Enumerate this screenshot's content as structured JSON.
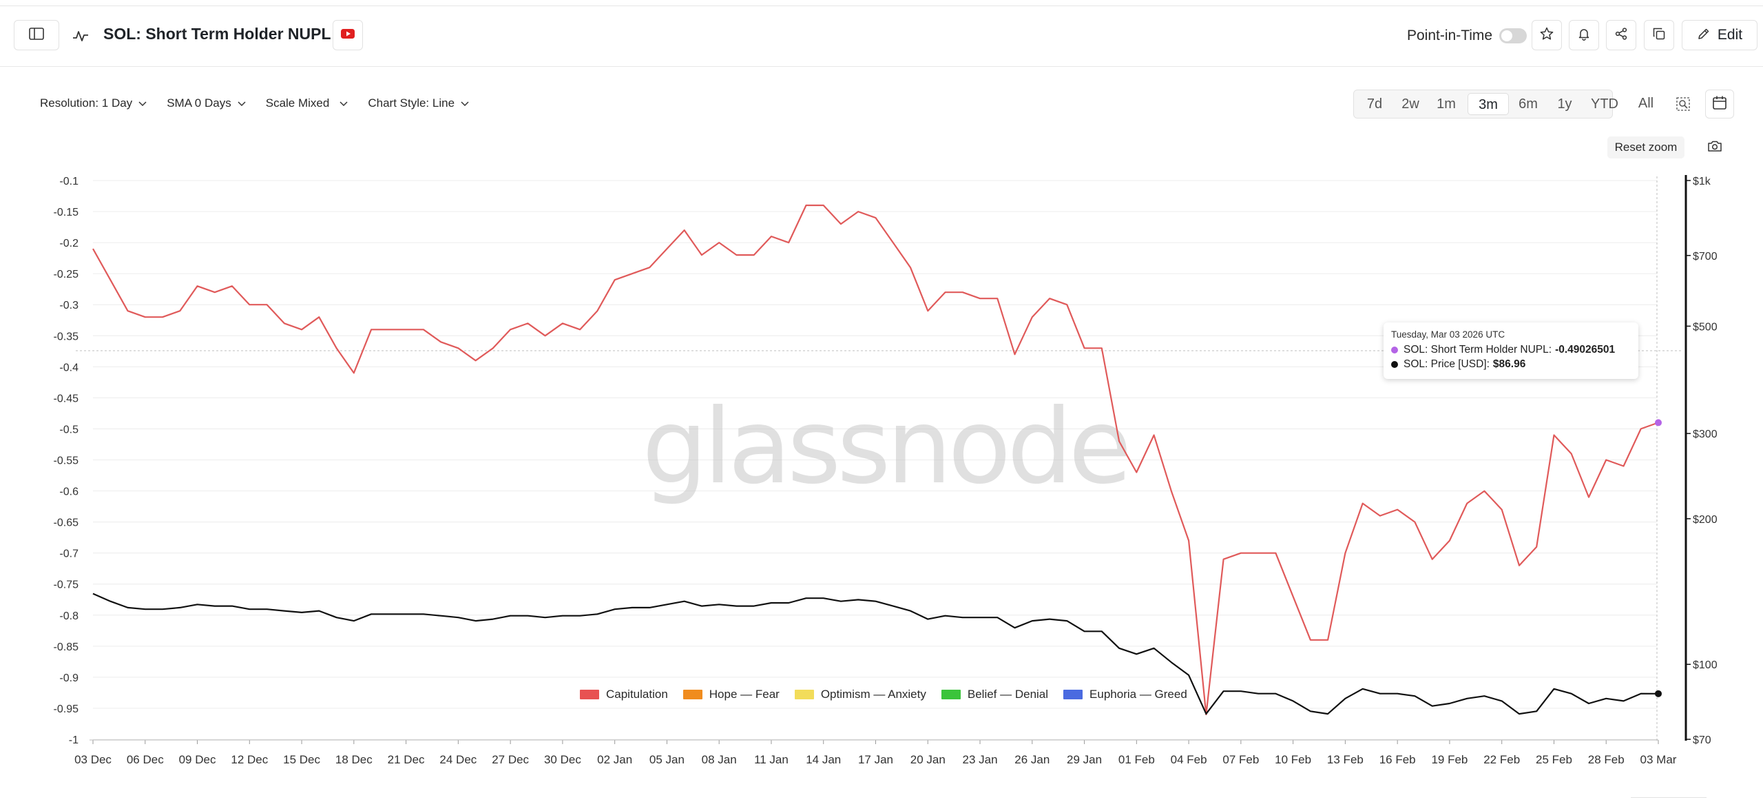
{
  "header": {
    "title": "SOL: Short Term Holder NUPL",
    "point_in_time_label": "Point-in-Time",
    "edit_label": "Edit"
  },
  "controls": {
    "resolution": "Resolution: 1 Day",
    "sma": "SMA 0 Days",
    "scale": "Scale Mixed",
    "chart_style": "Chart Style: Line"
  },
  "ranges": [
    {
      "label": "7d",
      "active": false
    },
    {
      "label": "2w",
      "active": false
    },
    {
      "label": "1m",
      "active": false
    },
    {
      "label": "3m",
      "active": true
    },
    {
      "label": "6m",
      "active": false
    },
    {
      "label": "1y",
      "active": false
    },
    {
      "label": "YTD",
      "active": false
    },
    {
      "label": "All",
      "active": false
    }
  ],
  "reset_zoom_label": "Reset zoom",
  "watermark": "glassnode",
  "tooltip": {
    "date": "Tuesday, Mar 03 2026 UTC",
    "series1_label": "SOL: Short Term Holder NUPL:",
    "series1_value": "-0.49026501",
    "series2_label": "SOL: Price [USD]:",
    "series2_value": "$86.96"
  },
  "legend": [
    {
      "label": "Capitulation",
      "color": "#e85252"
    },
    {
      "label": "Hope — Fear",
      "color": "#f08c1e"
    },
    {
      "label": "Optimism — Anxiety",
      "color": "#f2dc5a"
    },
    {
      "label": "Belief — Denial",
      "color": "#3bc43b"
    },
    {
      "label": "Euphoria — Greed",
      "color": "#4a6ae0"
    }
  ],
  "colors": {
    "nupl_line": "#e05a5a",
    "price_line": "#111111",
    "marker": "#b464e6"
  },
  "chart_data": {
    "type": "line",
    "title": "SOL: Short Term Holder NUPL",
    "x_tick_labels": [
      "03 Dec",
      "06 Dec",
      "09 Dec",
      "12 Dec",
      "15 Dec",
      "18 Dec",
      "21 Dec",
      "24 Dec",
      "27 Dec",
      "30 Dec",
      "02 Jan",
      "05 Jan",
      "08 Jan",
      "11 Jan",
      "14 Jan",
      "17 Jan",
      "20 Jan",
      "23 Jan",
      "26 Jan",
      "29 Jan",
      "01 Feb",
      "04 Feb",
      "07 Feb",
      "10 Feb",
      "13 Feb",
      "16 Feb",
      "19 Feb",
      "22 Feb",
      "25 Feb",
      "28 Feb",
      "03 Mar"
    ],
    "x_start": "2025-12-03",
    "x_end": "2026-03-03",
    "left_axis": {
      "ticks": [
        "-0.1",
        "-0.15",
        "-0.2",
        "-0.25",
        "-0.3",
        "-0.35",
        "-0.4",
        "-0.45",
        "-0.5",
        "-0.55",
        "-0.6",
        "-0.65",
        "-0.7",
        "-0.75",
        "-0.8",
        "-0.85",
        "-0.9",
        "-0.95",
        "-1"
      ],
      "ylim": [
        -1,
        -0.1
      ]
    },
    "right_axis": {
      "scale": "log",
      "ticks": [
        "$1k",
        "$700",
        "$500",
        "$300",
        "$200",
        "$100",
        "$70"
      ],
      "ylim": [
        70,
        1000
      ]
    },
    "series": [
      {
        "name": "SOL: Short Term Holder NUPL",
        "axis": "left",
        "values": [
          -0.21,
          -0.26,
          -0.31,
          -0.32,
          -0.32,
          -0.31,
          -0.27,
          -0.28,
          -0.27,
          -0.3,
          -0.3,
          -0.33,
          -0.34,
          -0.32,
          -0.37,
          -0.41,
          -0.34,
          -0.34,
          -0.34,
          -0.34,
          -0.36,
          -0.37,
          -0.39,
          -0.37,
          -0.34,
          -0.33,
          -0.35,
          -0.33,
          -0.34,
          -0.31,
          -0.26,
          -0.25,
          -0.24,
          -0.21,
          -0.18,
          -0.22,
          -0.2,
          -0.22,
          -0.22,
          -0.19,
          -0.2,
          -0.14,
          -0.14,
          -0.17,
          -0.15,
          -0.16,
          -0.2,
          -0.24,
          -0.31,
          -0.28,
          -0.28,
          -0.29,
          -0.29,
          -0.38,
          -0.32,
          -0.29,
          -0.3,
          -0.37,
          -0.37,
          -0.52,
          -0.57,
          -0.51,
          -0.6,
          -0.68,
          -0.96,
          -0.71,
          -0.7,
          -0.7,
          -0.7,
          -0.77,
          -0.84,
          -0.84,
          -0.7,
          -0.62,
          -0.64,
          -0.63,
          -0.65,
          -0.71,
          -0.68,
          -0.62,
          -0.6,
          -0.63,
          -0.72,
          -0.69,
          -0.51,
          -0.54,
          -0.61,
          -0.55,
          -0.56,
          -0.5,
          -0.49
        ]
      },
      {
        "name": "SOL: Price [USD]",
        "axis": "right",
        "values": [
          140,
          135,
          131,
          130,
          130,
          131,
          133,
          132,
          132,
          130,
          130,
          129,
          128,
          129,
          125,
          123,
          127,
          127,
          127,
          127,
          126,
          125,
          123,
          124,
          126,
          126,
          125,
          126,
          126,
          127,
          130,
          131,
          131,
          133,
          135,
          132,
          133,
          132,
          132,
          134,
          134,
          137,
          137,
          135,
          136,
          135,
          132,
          129,
          124,
          126,
          125,
          125,
          125,
          119,
          123,
          124,
          123,
          117,
          117,
          108,
          105,
          108,
          101,
          95,
          79,
          88,
          88,
          87,
          87,
          84,
          80,
          79,
          85,
          89,
          87,
          87,
          86,
          82,
          83,
          85,
          86,
          84,
          79,
          80,
          89,
          87,
          83,
          85,
          84,
          87,
          86.96
        ]
      }
    ]
  }
}
